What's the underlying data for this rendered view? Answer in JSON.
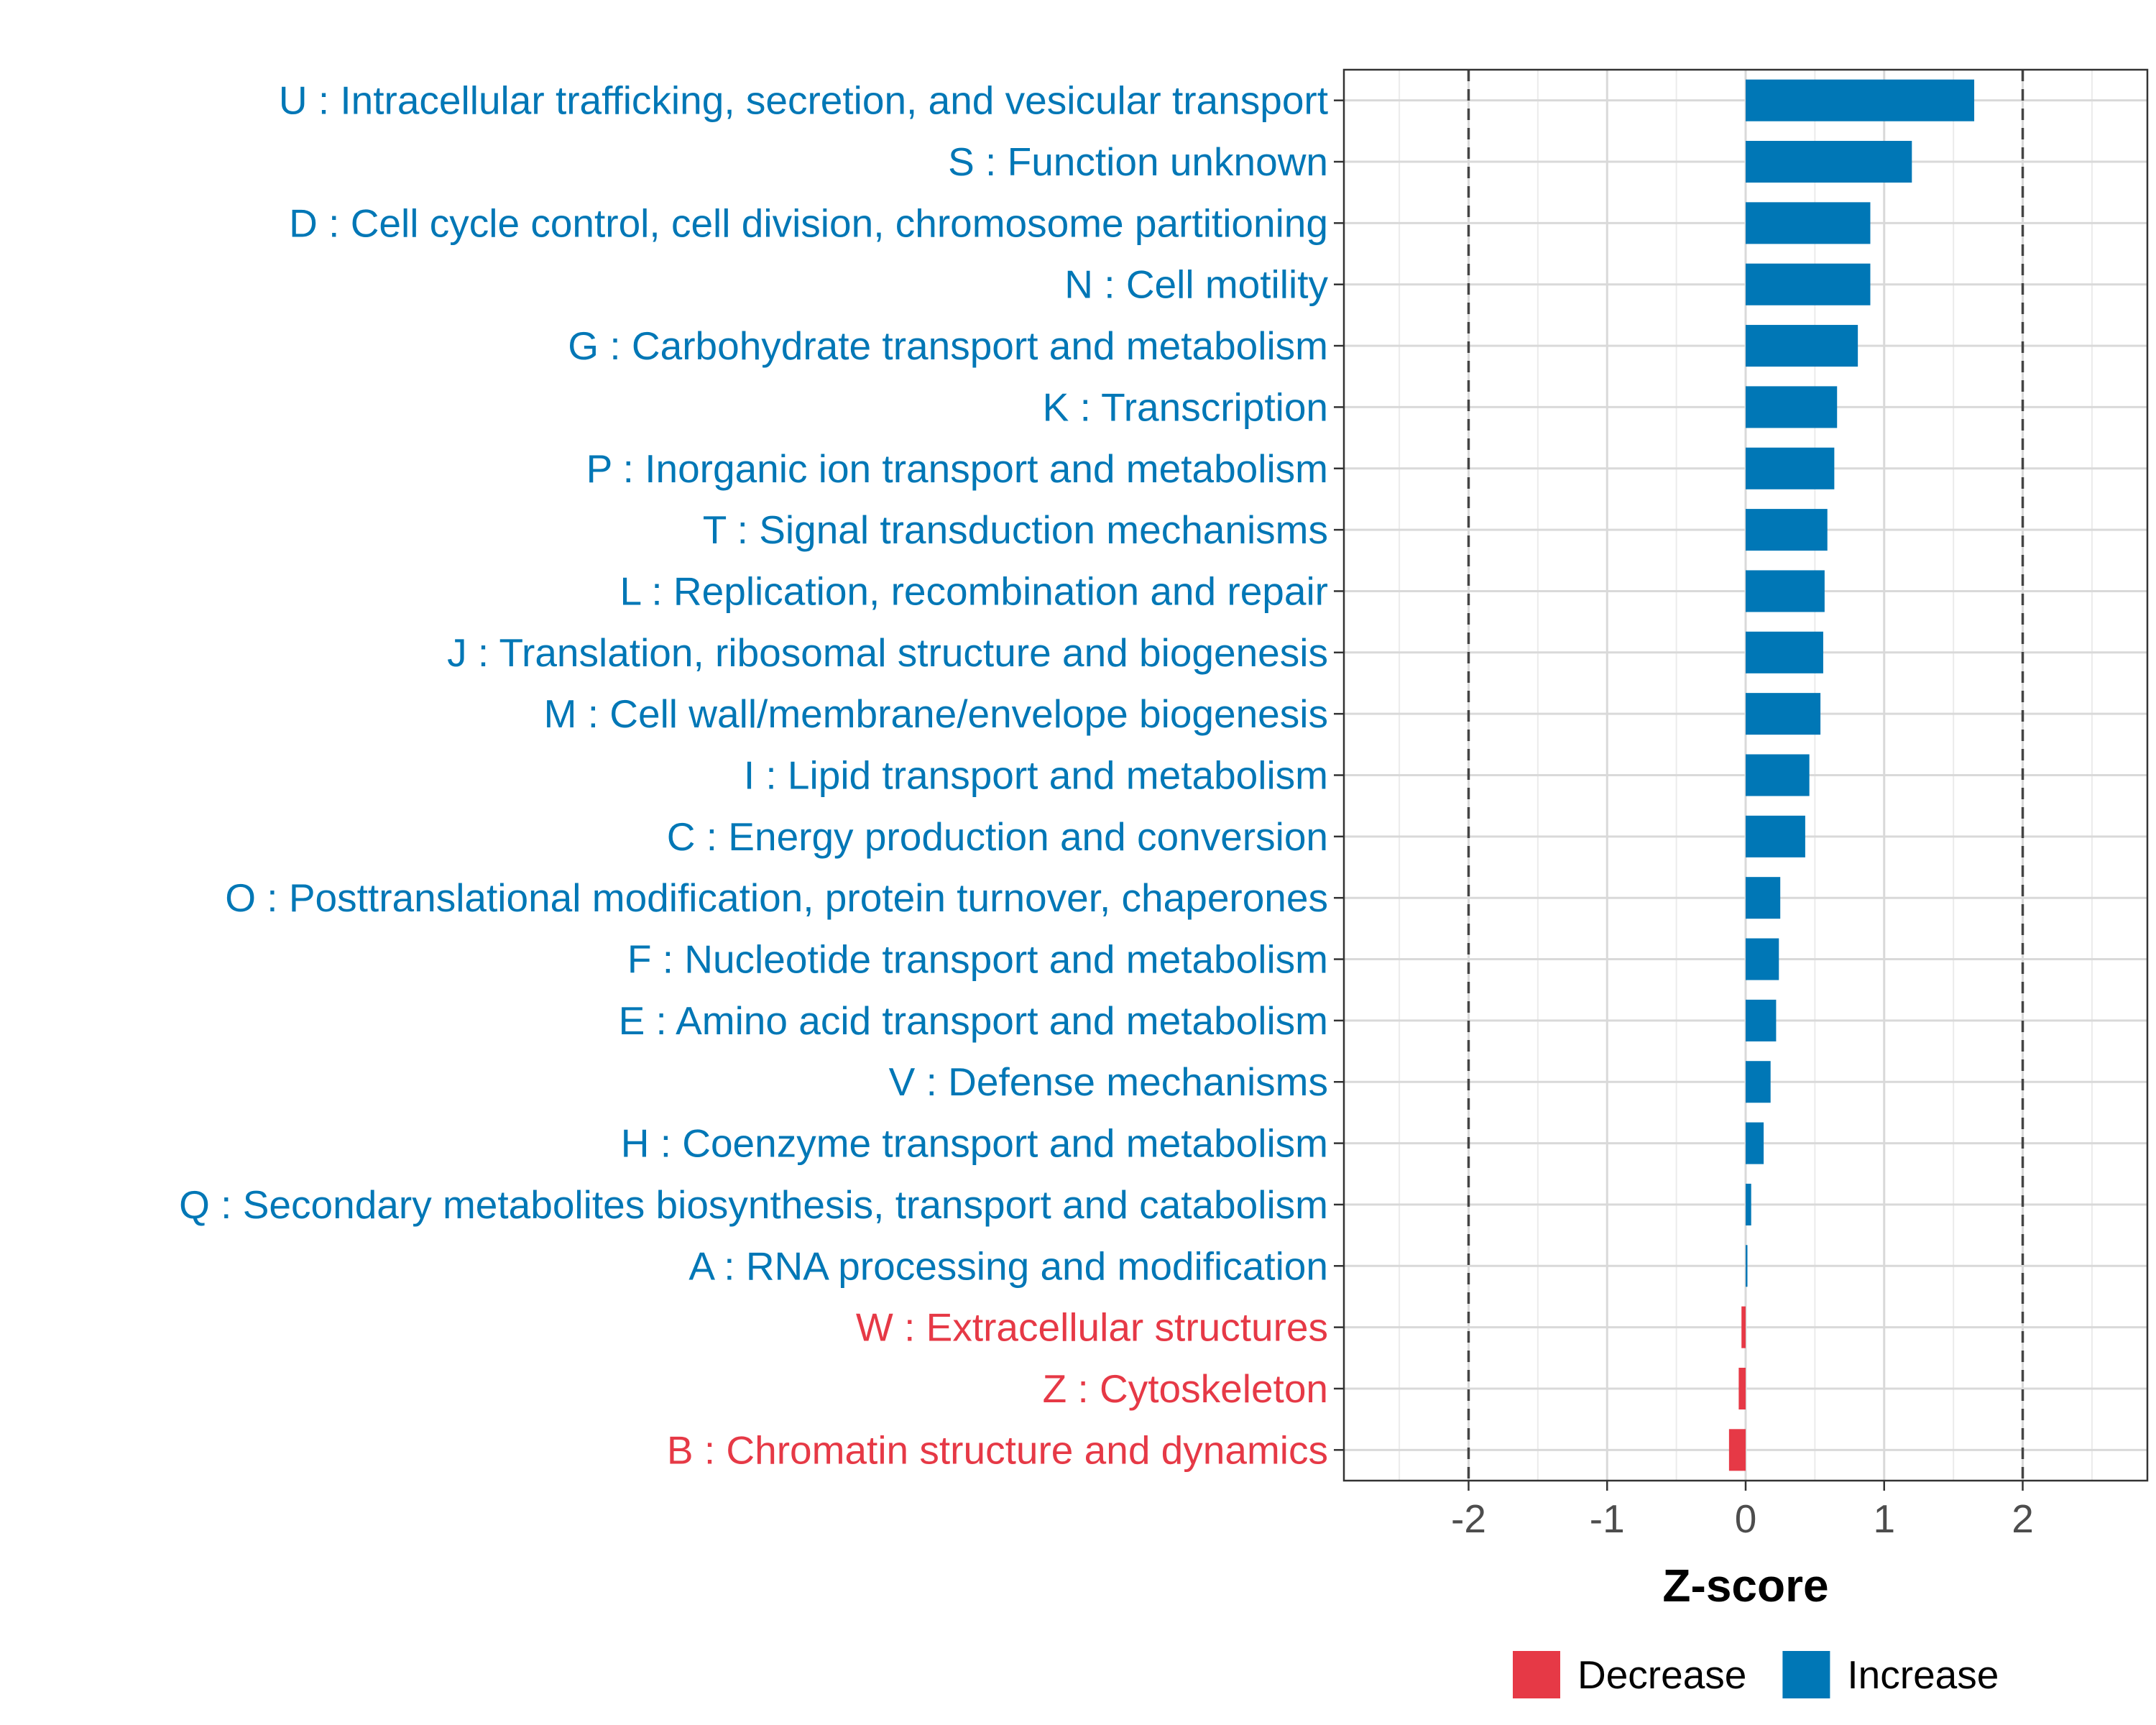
{
  "chart_data": {
    "type": "bar",
    "orientation": "horizontal",
    "title": "",
    "xlabel": "Z-score",
    "ylabel": "",
    "xlim": [
      -2.9,
      2.9
    ],
    "xticks": [
      -2,
      -1,
      0,
      1,
      2
    ],
    "xtick_labels": [
      "-2",
      "-1",
      "0",
      "1",
      "2"
    ],
    "reference_lines": [
      -2,
      2
    ],
    "grid": true,
    "colors": {
      "Decrease": "#e63946",
      "Increase": "#0077b6"
    },
    "legend": {
      "position": "bottom",
      "entries": [
        {
          "label": "Decrease",
          "color": "#e63946"
        },
        {
          "label": "Increase",
          "color": "#0077b6"
        }
      ]
    },
    "bars": [
      {
        "label": "U : Intracellular trafficking, secretion, and vesicular transport",
        "value": 1.65,
        "direction": "Increase"
      },
      {
        "label": "S : Function unknown",
        "value": 1.2,
        "direction": "Increase"
      },
      {
        "label": "D : Cell cycle control, cell division, chromosome partitioning",
        "value": 0.9,
        "direction": "Increase"
      },
      {
        "label": "N : Cell motility",
        "value": 0.9,
        "direction": "Increase"
      },
      {
        "label": "G : Carbohydrate transport and metabolism",
        "value": 0.81,
        "direction": "Increase"
      },
      {
        "label": "K : Transcription",
        "value": 0.66,
        "direction": "Increase"
      },
      {
        "label": "P : Inorganic ion transport and metabolism",
        "value": 0.64,
        "direction": "Increase"
      },
      {
        "label": "T : Signal transduction mechanisms",
        "value": 0.59,
        "direction": "Increase"
      },
      {
        "label": "L : Replication, recombination and repair",
        "value": 0.57,
        "direction": "Increase"
      },
      {
        "label": "J : Translation, ribosomal structure and biogenesis",
        "value": 0.56,
        "direction": "Increase"
      },
      {
        "label": "M : Cell wall/membrane/envelope biogenesis",
        "value": 0.54,
        "direction": "Increase"
      },
      {
        "label": "I : Lipid transport and metabolism",
        "value": 0.46,
        "direction": "Increase"
      },
      {
        "label": "C : Energy production and conversion",
        "value": 0.43,
        "direction": "Increase"
      },
      {
        "label": "O : Posttranslational modification, protein turnover, chaperones",
        "value": 0.25,
        "direction": "Increase"
      },
      {
        "label": "F : Nucleotide transport and metabolism",
        "value": 0.24,
        "direction": "Increase"
      },
      {
        "label": "E : Amino acid transport and metabolism",
        "value": 0.22,
        "direction": "Increase"
      },
      {
        "label": "V : Defense mechanisms",
        "value": 0.18,
        "direction": "Increase"
      },
      {
        "label": "H : Coenzyme transport and metabolism",
        "value": 0.13,
        "direction": "Increase"
      },
      {
        "label": "Q : Secondary metabolites biosynthesis, transport and catabolism",
        "value": 0.04,
        "direction": "Increase"
      },
      {
        "label": "A : RNA processing and modification",
        "value": 0.01,
        "direction": "Increase"
      },
      {
        "label": "W : Extracellular structures",
        "value": -0.03,
        "direction": "Decrease"
      },
      {
        "label": "Z : Cytoskeleton",
        "value": -0.05,
        "direction": "Decrease"
      },
      {
        "label": "B : Chromatin structure and dynamics",
        "value": -0.12,
        "direction": "Decrease"
      }
    ]
  }
}
